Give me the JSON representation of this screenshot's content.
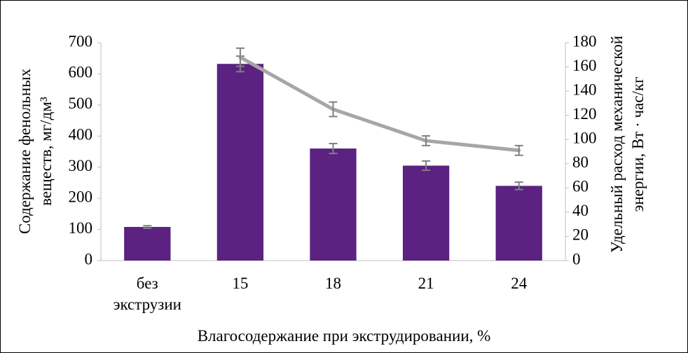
{
  "chart_data": {
    "type": "bar_line",
    "xlabel": "Влагосодержание при экструдировании, %",
    "ylabel": "Содержание фенольных веществ, мг/дм³",
    "y2label": "Удельный расход механической энергии, Вт · час/кг",
    "categories": [
      "без экструзии",
      "15",
      "18",
      "21",
      "24"
    ],
    "series": [
      {
        "type": "bar",
        "color": "#5b2281",
        "values": [
          108,
          632,
          360,
          305,
          240
        ],
        "errors": [
          4,
          25,
          16,
          15,
          12
        ]
      },
      {
        "type": "line",
        "axis": "y2",
        "color": "#a6a6a6",
        "values": [
          null,
          168,
          125,
          99,
          91
        ],
        "errors": [
          null,
          7.5,
          6,
          4,
          4
        ]
      }
    ],
    "error_color": "#808080",
    "ylim": [
      0,
      700
    ],
    "yticks": [
      0,
      100,
      200,
      300,
      400,
      500,
      600,
      700
    ],
    "y2lim": [
      0,
      180
    ],
    "y2ticks": [
      0,
      20,
      40,
      60,
      80,
      100,
      120,
      140,
      160,
      180
    ]
  }
}
